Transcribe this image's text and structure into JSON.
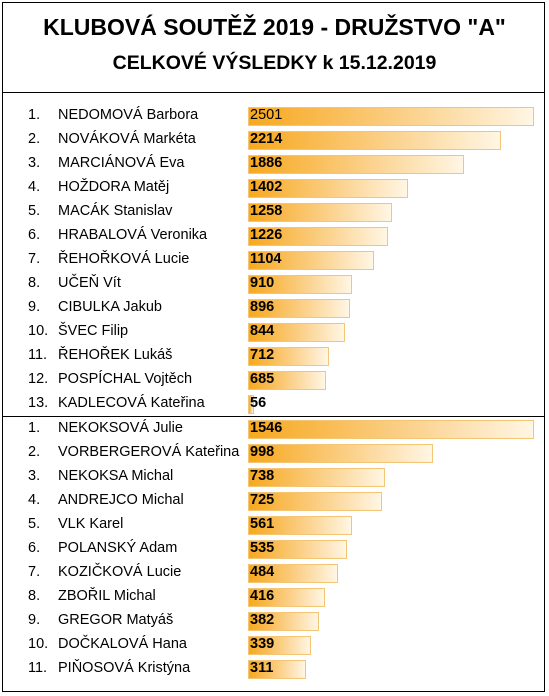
{
  "header": {
    "title": "KLUBOVÁ SOUTĚŽ 2019 - DRUŽSTVO \"A\"",
    "subtitle": "CELKOVÉ VÝSLEDKY k 15.12.2019"
  },
  "chart_data": [
    {
      "type": "bar",
      "orientation": "horizontal",
      "categories": [
        "NEDOMOVÁ Barbora",
        "NOVÁKOVÁ Markéta",
        "MARCIÁNOVÁ Eva",
        "HOŽDORA Matěj",
        "MACÁK Stanislav",
        "HRABALOVÁ Veronika",
        "ŘEHOŘKOVÁ Lucie",
        "UČEŇ Vít",
        "CIBULKA Jakub",
        "ŠVEC Filip",
        "ŘEHOŘEK Lukáš",
        "POSPÍCHAL Vojtěch",
        "KADLECOVÁ Kateřina"
      ],
      "ranks": [
        "1.",
        "2.",
        "3.",
        "4.",
        "5.",
        "6.",
        "7.",
        "8.",
        "9.",
        "10.",
        "11.",
        "12.",
        "13."
      ],
      "values": [
        2501,
        2214,
        1886,
        1402,
        1258,
        1226,
        1104,
        910,
        896,
        844,
        712,
        685,
        56
      ],
      "value_labels": [
        "2501",
        "2214",
        "1886",
        "1402",
        "1258",
        "1226",
        "1104",
        "910",
        "896",
        "844",
        "712",
        "685",
        "56"
      ],
      "bar_color": "#f7a81e"
    },
    {
      "type": "bar",
      "orientation": "horizontal",
      "categories": [
        "NEKOKSOVÁ Julie",
        "VORBERGEROVÁ Kateřina",
        "NEKOKSA Michal",
        "ANDREJCO Michal",
        "VLK Karel",
        "POLANSKÝ Adam",
        "KOZIČKOVÁ Lucie",
        "ZBOŘIL Michal",
        "GREGOR Matyáš",
        "DOČKALOVÁ Hana",
        "PIŇOSOVÁ Kristýna"
      ],
      "ranks": [
        "1.",
        "2.",
        "3.",
        "4.",
        "5.",
        "6.",
        "7.",
        "8.",
        "9.",
        "10.",
        "11."
      ],
      "values": [
        1546,
        998,
        738,
        725,
        561,
        535,
        484,
        416,
        382,
        339,
        311
      ],
      "value_labels": [
        "1546",
        "998",
        "738",
        "725",
        "561",
        "535",
        "484",
        "416",
        "382",
        "339",
        "311"
      ],
      "bar_color": "#f7a81e"
    }
  ]
}
